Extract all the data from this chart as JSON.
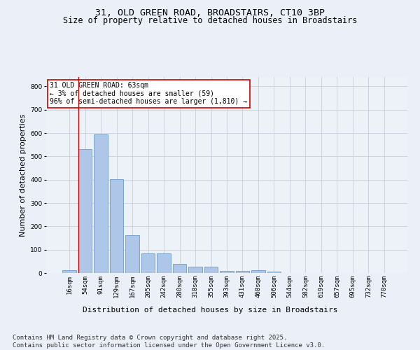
{
  "title_line1": "31, OLD GREEN ROAD, BROADSTAIRS, CT10 3BP",
  "title_line2": "Size of property relative to detached houses in Broadstairs",
  "xlabel": "Distribution of detached houses by size in Broadstairs",
  "ylabel": "Number of detached properties",
  "categories": [
    "16sqm",
    "54sqm",
    "91sqm",
    "129sqm",
    "167sqm",
    "205sqm",
    "242sqm",
    "280sqm",
    "318sqm",
    "355sqm",
    "393sqm",
    "431sqm",
    "468sqm",
    "506sqm",
    "544sqm",
    "582sqm",
    "619sqm",
    "657sqm",
    "695sqm",
    "732sqm",
    "770sqm"
  ],
  "values": [
    13,
    530,
    593,
    403,
    163,
    85,
    83,
    40,
    28,
    28,
    10,
    10,
    12,
    5,
    0,
    0,
    0,
    0,
    0,
    0,
    0
  ],
  "bar_color": "#aec6e8",
  "bar_edge_color": "#5a8fc0",
  "bg_color": "#eaeff8",
  "plot_bg_color": "#edf1f8",
  "annotation_text": "31 OLD GREEN ROAD: 63sqm\n← 3% of detached houses are smaller (59)\n96% of semi-detached houses are larger (1,810) →",
  "annotation_box_color": "#ffffff",
  "annotation_box_edge": "#cc0000",
  "vline_color": "#cc0000",
  "footer_text": "Contains HM Land Registry data © Crown copyright and database right 2025.\nContains public sector information licensed under the Open Government Licence v3.0.",
  "ylim": [
    0,
    840
  ],
  "yticks": [
    0,
    100,
    200,
    300,
    400,
    500,
    600,
    700,
    800
  ],
  "title_fontsize": 9.5,
  "subtitle_fontsize": 8.5,
  "tick_fontsize": 6.5,
  "label_fontsize": 8,
  "footer_fontsize": 6.5,
  "annot_fontsize": 7
}
